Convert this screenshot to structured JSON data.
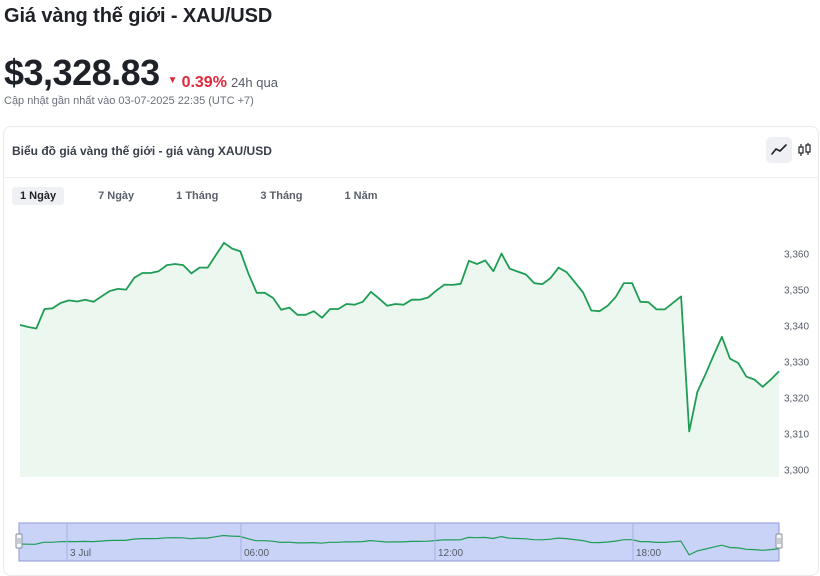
{
  "header": {
    "title": "Giá vàng thế giới - XAU/USD",
    "price": "$3,328.83",
    "change_pct": "0.39%",
    "change_period": "24h qua",
    "updated": "Cập nhật gần nhất vào 03-07-2025 22:35 (UTC +7)"
  },
  "card": {
    "title": "Biểu đồ giá vàng thế giới - giá vàng XAU/USD",
    "toggles": [
      {
        "icon": "line-chart-icon",
        "active": true
      },
      {
        "icon": "candlestick-icon",
        "active": false
      }
    ],
    "ranges": [
      {
        "label": "1 Ngày",
        "active": true
      },
      {
        "label": "7 Ngày",
        "active": false
      },
      {
        "label": "1 Tháng",
        "active": false
      },
      {
        "label": "3 Tháng",
        "active": false
      },
      {
        "label": "1 Năm",
        "active": false
      }
    ]
  },
  "colors": {
    "line": "#1f9d55",
    "area": "#ecf7ef",
    "navigator_bg": "#c9d2f7",
    "navigator_border": "#8d9ad8",
    "down": "#e0283c"
  },
  "chart_data": {
    "type": "area",
    "ylim": [
      3300,
      3360
    ],
    "y_ticks": [
      "3,300",
      "3,310",
      "3,320",
      "3,330",
      "3,340",
      "3,350",
      "3,360"
    ],
    "y_tick_values": [
      3300,
      3310,
      3320,
      3330,
      3340,
      3350,
      3360
    ],
    "values": [
      3340.2,
      3339.6,
      3339.2,
      3344.6,
      3344.8,
      3346.3,
      3347.0,
      3346.7,
      3347.2,
      3346.6,
      3348.1,
      3349.6,
      3350.2,
      3350.0,
      3353.3,
      3354.6,
      3354.6,
      3355.1,
      3356.8,
      3357.1,
      3356.8,
      3354.5,
      3356.1,
      3356.1,
      3359.6,
      3363.0,
      3361.4,
      3360.6,
      3354.4,
      3349.1,
      3349.1,
      3347.7,
      3344.4,
      3345.0,
      3343.0,
      3343.0,
      3344.0,
      3342.2,
      3344.6,
      3344.6,
      3346.0,
      3345.8,
      3346.6,
      3349.4,
      3347.5,
      3345.5,
      3346.0,
      3345.8,
      3347.2,
      3347.2,
      3347.8,
      3349.7,
      3351.4,
      3351.3,
      3351.6,
      3358.0,
      3357.1,
      3358.1,
      3355.1,
      3360.0,
      3355.8,
      3355.0,
      3354.2,
      3351.8,
      3351.5,
      3353.2,
      3356.1,
      3354.8,
      3352.0,
      3349.2,
      3344.2,
      3344.0,
      3345.5,
      3348.0,
      3351.8,
      3351.8,
      3346.6,
      3346.5,
      3344.5,
      3344.5,
      3346.3,
      3348.1,
      3310.6,
      3321.6,
      3326.5,
      3331.8,
      3336.9,
      3330.8,
      3329.6,
      3325.8,
      3325.0,
      3323.0,
      3325.0,
      3327.3
    ],
    "navigator_labels": [
      "3 Jul",
      "06:00",
      "12:00",
      "18:00"
    ]
  }
}
